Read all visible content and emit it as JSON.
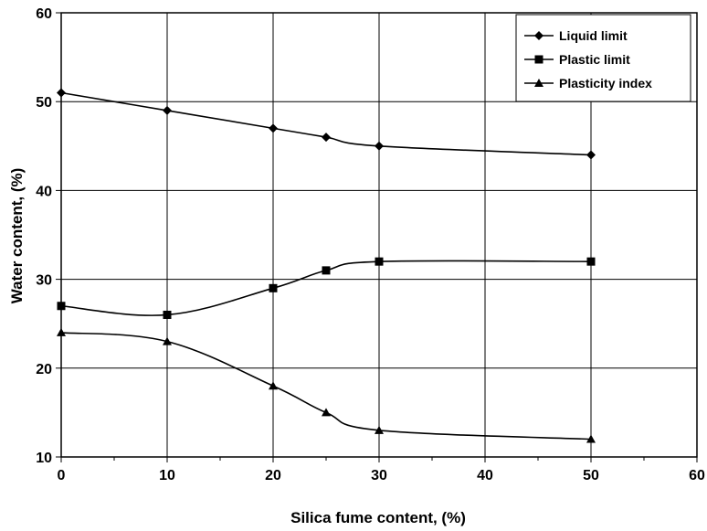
{
  "chart_data": {
    "type": "line",
    "xlabel": "Silica fume content, (%)",
    "ylabel": "Water content, (%)",
    "xlim": [
      0,
      60
    ],
    "ylim": [
      10,
      60
    ],
    "x_ticks": [
      0,
      10,
      20,
      30,
      40,
      50,
      60
    ],
    "y_ticks": [
      10,
      20,
      30,
      40,
      50,
      60
    ],
    "grid": true,
    "legend_position": "top-right",
    "series": [
      {
        "name": "Liquid limit",
        "marker": "diamond",
        "x": [
          0,
          10,
          20,
          25,
          30,
          50
        ],
        "y": [
          51,
          49,
          47,
          46,
          45,
          44
        ]
      },
      {
        "name": "Plastic limit",
        "marker": "square",
        "x": [
          0,
          10,
          20,
          25,
          30,
          50
        ],
        "y": [
          27,
          26,
          29,
          31,
          32,
          32
        ]
      },
      {
        "name": "Plasticity index",
        "marker": "triangle",
        "x": [
          0,
          10,
          20,
          25,
          30,
          50
        ],
        "y": [
          24,
          23,
          18,
          15,
          13,
          12
        ]
      }
    ]
  }
}
